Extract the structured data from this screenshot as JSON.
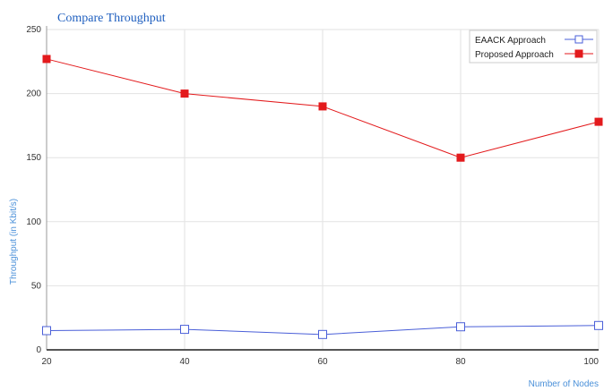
{
  "chart_data": {
    "type": "line",
    "title": "Compare Throughput",
    "xlabel": "Number of Nodes",
    "ylabel": "Throughput (in Kbit/s)",
    "x": [
      20,
      40,
      60,
      80,
      100
    ],
    "x_ticks": [
      "20",
      "40",
      "60",
      "80",
      "100"
    ],
    "y_ticks": [
      "0",
      "50",
      "100",
      "150",
      "200",
      "250"
    ],
    "xlim": [
      20,
      100
    ],
    "ylim": [
      0,
      250
    ],
    "grid": true,
    "legend_position": "top-right",
    "series": [
      {
        "name": "EAACK Approach",
        "values": [
          15,
          16,
          12,
          18,
          19
        ],
        "color": "#4a5fd8",
        "marker": "open-square"
      },
      {
        "name": "Proposed Approach",
        "values": [
          227,
          200,
          190,
          150,
          178
        ],
        "color": "#e31a1c",
        "marker": "filled-square"
      }
    ]
  }
}
